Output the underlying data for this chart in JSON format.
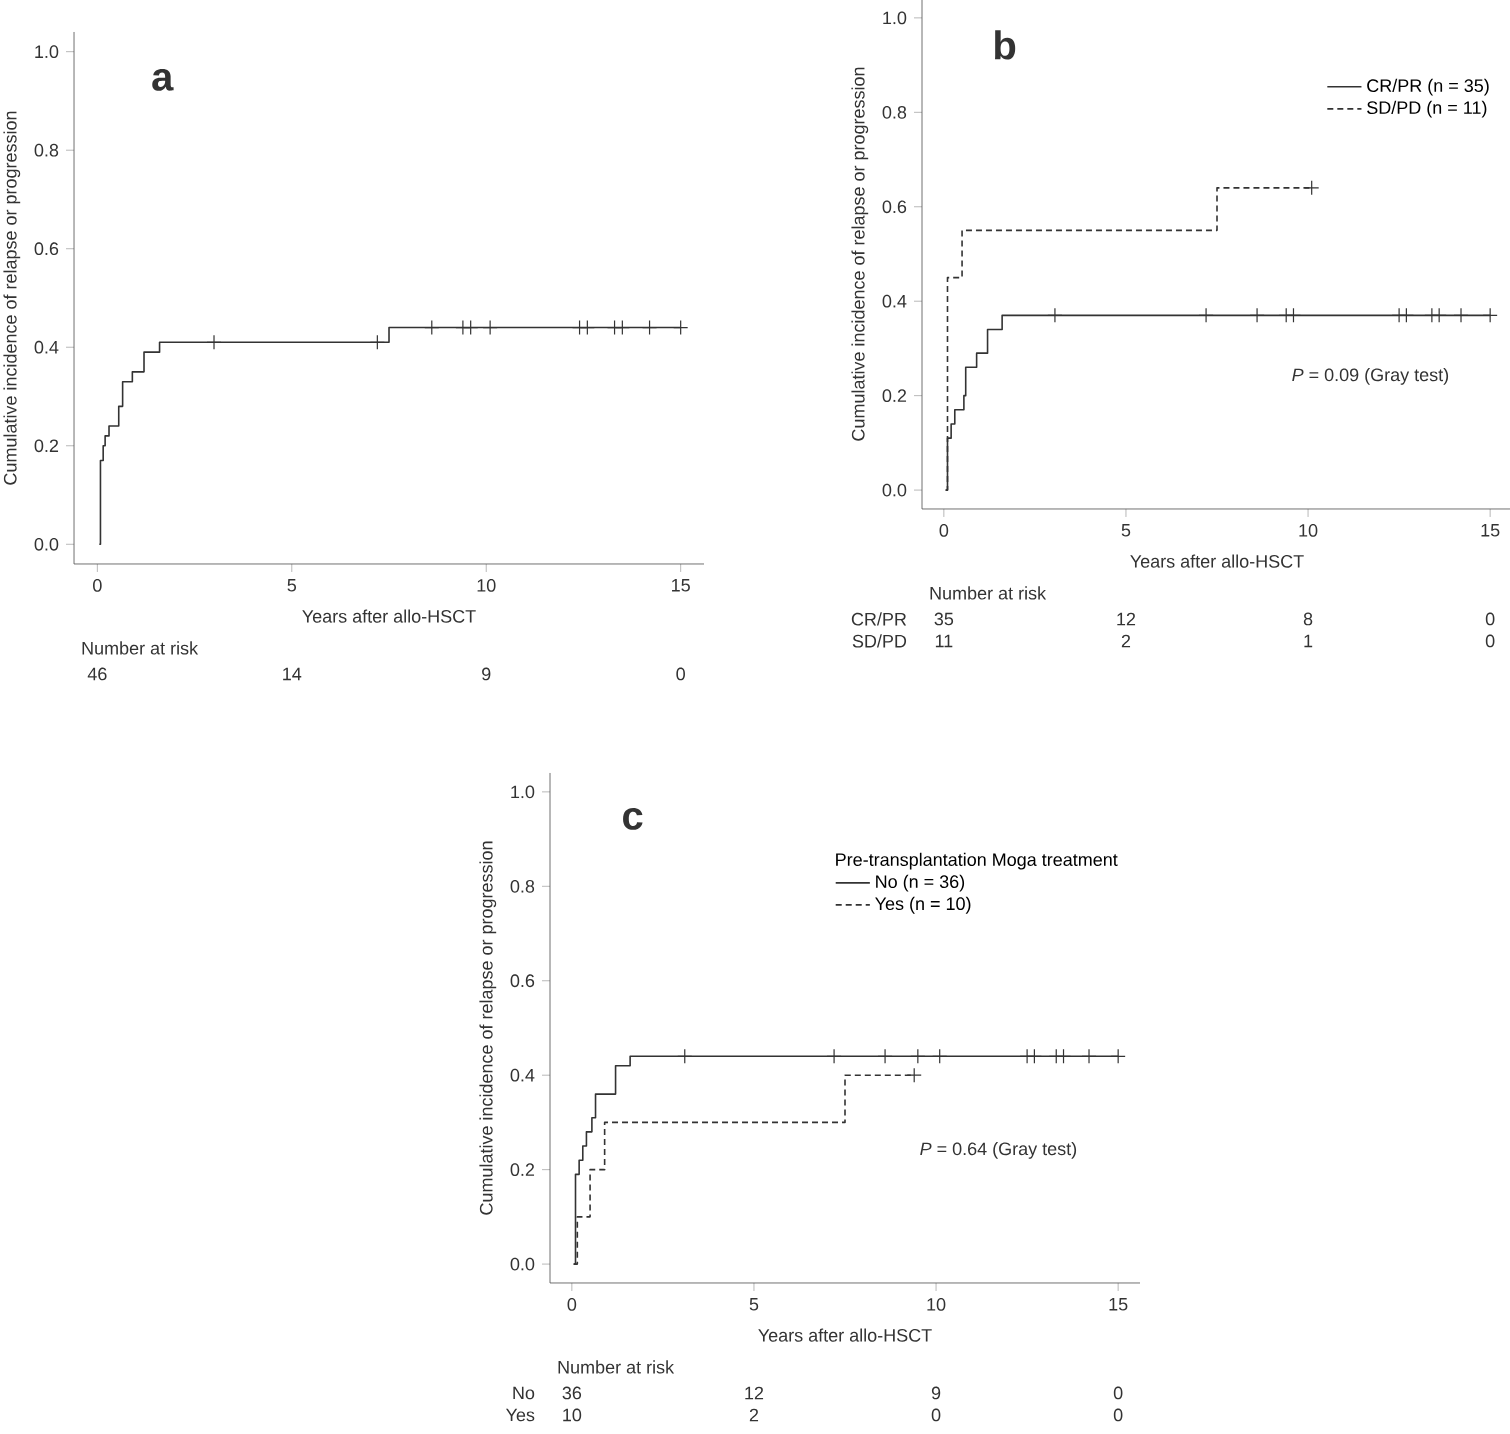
{
  "chart_data": [
    {
      "type": "step",
      "title": "a",
      "xlabel": "Years after allo-HSCT",
      "ylabel": "Cumulative incidence of relapse or progression",
      "xlim": [
        -0.6,
        15.6
      ],
      "ylim": [
        -0.04,
        1.04
      ],
      "xticks": [
        0,
        5,
        10,
        15
      ],
      "yticks": [
        {
          "value": 0,
          "label": "0.0"
        },
        {
          "value": 0.2,
          "label": "0.2"
        },
        {
          "value": 0.4,
          "label": "0.4"
        },
        {
          "value": 0.6,
          "label": "0.6"
        },
        {
          "value": 0.8,
          "label": "0.8"
        },
        {
          "value": 1,
          "label": "1.0"
        }
      ],
      "series": [
        {
          "color": "#333333",
          "line_style": "solid",
          "x": [
            0.05,
            0.08,
            0.15,
            0.2,
            0.3,
            0.55,
            0.65,
            0.9,
            1.2,
            1.6,
            7.5,
            15
          ],
          "values": [
            0,
            0.17,
            0.2,
            0.22,
            0.24,
            0.28,
            0.33,
            0.35,
            0.39,
            0.41,
            0.44,
            0.44
          ]
        },
        {
          "type": "scatter",
          "marker": "cross",
          "color": "#333333",
          "x": [
            3.0,
            7.2,
            8.6,
            9.4,
            9.6,
            10.1,
            12.4,
            12.6,
            13.3,
            13.5,
            14.2,
            15.0
          ],
          "values": [
            0.41,
            0.41,
            0.44,
            0.44,
            0.44,
            0.44,
            0.44,
            0.44,
            0.44,
            0.44,
            0.44,
            0.44
          ]
        }
      ],
      "annotations": [
        "Number at risk",
        "46",
        "14",
        "9",
        "0"
      ]
    },
    {
      "type": "step",
      "title": "b",
      "xlabel": "Years after allo-HSCT",
      "ylabel": "Cumulative incidence of relapse or progression",
      "xlim": [
        -0.6,
        15.6
      ],
      "ylim": [
        -0.04,
        1.04
      ],
      "xticks": [
        0,
        5,
        10,
        15
      ],
      "yticks": [
        {
          "value": 0,
          "label": "0.0"
        },
        {
          "value": 0.2,
          "label": "0.2"
        },
        {
          "value": 0.4,
          "label": "0.4"
        },
        {
          "value": 0.6,
          "label": "0.6"
        },
        {
          "value": 0.8,
          "label": "0.8"
        },
        {
          "value": 1,
          "label": "1.0"
        }
      ],
      "legend": "top right",
      "series": [
        {
          "name": "CR/PR (n = 35)",
          "color": "#333333",
          "line_style": "solid",
          "x": [
            0.05,
            0.1,
            0.2,
            0.3,
            0.55,
            0.6,
            0.9,
            1.2,
            1.6,
            15
          ],
          "values": [
            0,
            0.11,
            0.14,
            0.17,
            0.2,
            0.26,
            0.29,
            0.34,
            0.37,
            0.37
          ]
        },
        {
          "name": "SD/PD (n = 11)",
          "color": "#333333",
          "line_style": "dashed",
          "x": [
            0.05,
            0.1,
            0.5,
            7.5,
            10.1
          ],
          "values": [
            0,
            0.45,
            0.55,
            0.64,
            0.64
          ]
        },
        {
          "type": "scatter",
          "marker": "cross",
          "color": "#333333",
          "x": [
            3.05,
            7.2,
            8.6,
            9.4,
            9.6,
            12.5,
            12.7,
            13.4,
            13.6,
            14.2,
            15.0,
            10.1
          ],
          "values": [
            0.37,
            0.37,
            0.37,
            0.37,
            0.37,
            0.37,
            0.37,
            0.37,
            0.37,
            0.37,
            0.37,
            0.64
          ]
        }
      ],
      "annotations": [
        "Number at risk",
        "CR/PR",
        "35",
        "12",
        "8",
        "0",
        "SD/PD",
        "11",
        "2",
        "1",
        "0",
        "*P* = 0.09 (Gray test)"
      ]
    },
    {
      "type": "step",
      "title": "c",
      "xlabel": "Years after allo-HSCT",
      "ylabel": "Cumulative incidence of relapse or progression",
      "xlim": [
        -0.6,
        15.6
      ],
      "ylim": [
        -0.04,
        1.04
      ],
      "xticks": [
        0,
        5,
        10,
        15
      ],
      "yticks": [
        {
          "value": 0,
          "label": "0.0"
        },
        {
          "value": 0.2,
          "label": "0.2"
        },
        {
          "value": 0.4,
          "label": "0.4"
        },
        {
          "value": 0.6,
          "label": "0.6"
        },
        {
          "value": 0.8,
          "label": "0.8"
        },
        {
          "value": 1,
          "label": "1.0"
        }
      ],
      "legend": "top right",
      "legend_title": "Pre-transplantation Moga treatment",
      "series": [
        {
          "name": "No (n = 36)",
          "color": "#333333",
          "line_style": "solid",
          "x": [
            0.05,
            0.1,
            0.2,
            0.3,
            0.4,
            0.55,
            0.65,
            1.2,
            1.6,
            15
          ],
          "values": [
            0,
            0.19,
            0.22,
            0.25,
            0.28,
            0.31,
            0.36,
            0.42,
            0.44,
            0.44
          ]
        },
        {
          "name": "Yes (n = 10)",
          "color": "#333333",
          "line_style": "dashed",
          "x": [
            0.05,
            0.15,
            0.5,
            0.9,
            7.5,
            9.4
          ],
          "values": [
            0,
            0.1,
            0.2,
            0.3,
            0.4,
            0.4
          ]
        },
        {
          "type": "scatter",
          "marker": "cross",
          "color": "#333333",
          "x": [
            3.1,
            7.2,
            8.6,
            9.5,
            10.1,
            12.5,
            12.7,
            13.3,
            13.5,
            14.2,
            15.0,
            9.4
          ],
          "values": [
            0.44,
            0.44,
            0.44,
            0.44,
            0.44,
            0.44,
            0.44,
            0.44,
            0.44,
            0.44,
            0.44,
            0.4
          ]
        }
      ],
      "annotations": [
        "Number at risk",
        "No",
        "36",
        "12",
        "9",
        "0",
        "Yes",
        "10",
        "2",
        "0",
        "0",
        "*P* = 0.64 (Gray test)"
      ]
    }
  ]
}
